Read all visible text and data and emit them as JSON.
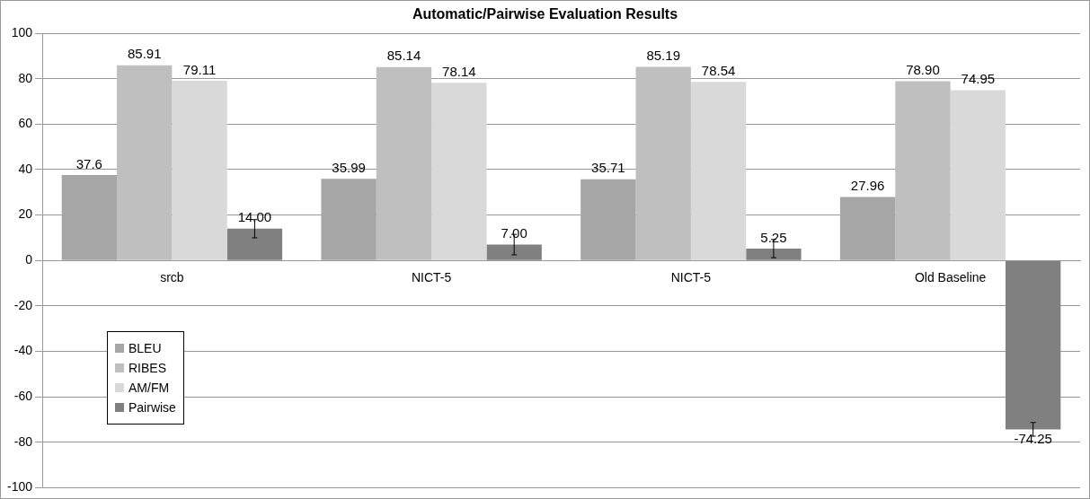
{
  "chart_data": {
    "type": "bar",
    "title": "Automatic/Pairwise Evaluation Results",
    "categories": [
      "srcb",
      "NICT-5",
      "NICT-5",
      "Old Baseline"
    ],
    "series": [
      {
        "name": "BLEU",
        "color": "#a6a6a6",
        "values": [
          37.6,
          35.99,
          35.71,
          27.96
        ],
        "value_labels": [
          "37.6",
          "35.99",
          "35.71",
          "27.96"
        ]
      },
      {
        "name": "RIBES",
        "color": "#bfbfbf",
        "values": [
          85.91,
          85.14,
          85.19,
          78.9
        ],
        "value_labels": [
          "85.91",
          "85.14",
          "85.19",
          "78.90"
        ]
      },
      {
        "name": "AM/FM",
        "color": "#d9d9d9",
        "values": [
          79.11,
          78.14,
          78.54,
          74.95
        ],
        "value_labels": [
          "79.11",
          "78.14",
          "78.54",
          "74.95"
        ]
      },
      {
        "name": "Pairwise",
        "color": "#808080",
        "values": [
          14,
          7,
          5.25,
          -74.25
        ],
        "value_labels": [
          "14.00",
          "7.00",
          "5.25",
          "-74.25"
        ],
        "errors": [
          4,
          4.5,
          4,
          3
        ]
      }
    ],
    "ylim": [
      -100,
      100
    ],
    "yticks": [
      -100,
      -80,
      -60,
      -40,
      -20,
      0,
      20,
      40,
      60,
      80,
      100
    ],
    "grid": "y",
    "legend": "bottom left"
  }
}
